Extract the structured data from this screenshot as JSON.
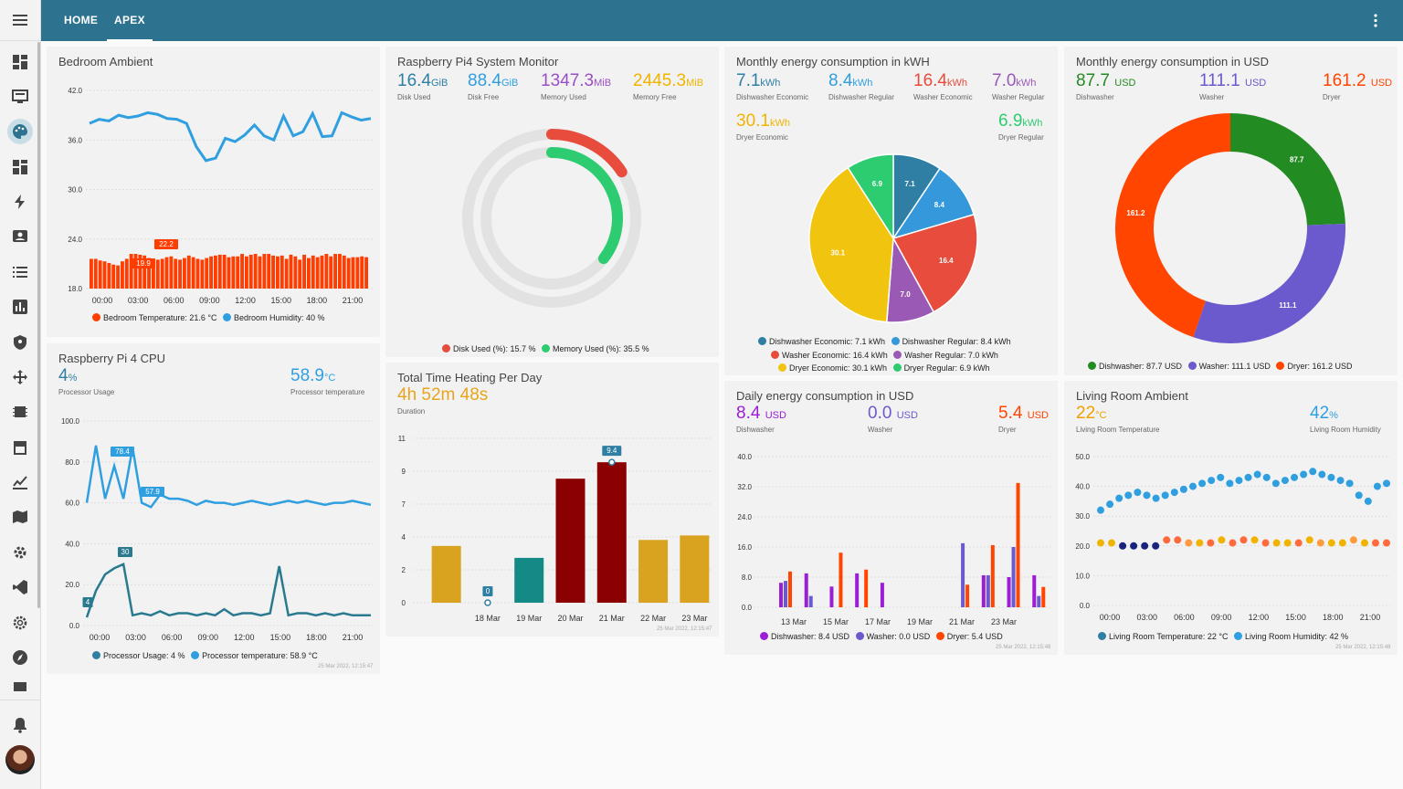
{
  "topbar": {
    "tabs": [
      {
        "label": "HOME"
      },
      {
        "label": "APEX"
      }
    ]
  },
  "sidebar": {
    "items": [
      "dashboard-icon",
      "monitor-icon",
      "palette-icon",
      "grid-icon",
      "bolt-icon",
      "user-card-icon",
      "list-icon",
      "chart-icon",
      "shield-icon",
      "move-icon",
      "memory-icon",
      "store-icon",
      "trend-icon",
      "map-icon",
      "cog-icon",
      "vscode-icon",
      "settings-icon",
      "compass-icon",
      "sensor-icon",
      "bell-icon"
    ]
  },
  "bedroom": {
    "title": "Bedroom Ambient",
    "legend": [
      "Bedroom Temperature: 21.6 °C",
      "Bedroom Humidity: 40 %"
    ],
    "colors": {
      "temp": "#ff3d00",
      "hum": "#2f9fe0"
    },
    "chart_data": {
      "type": "line",
      "ylim": [
        18,
        42
      ],
      "yticks": [
        "42.0",
        "36.0",
        "30.0",
        "24.0",
        "18.0"
      ],
      "xticks": [
        "00:00",
        "03:00",
        "06:00",
        "09:00",
        "12:00",
        "15:00",
        "18:00",
        "21:00"
      ],
      "series": [
        {
          "name": "Bedroom Humidity",
          "values": [
            38,
            38.5,
            38.3,
            39,
            38.7,
            38.9,
            39.3,
            39.1,
            38.6,
            38.5,
            38,
            35.2,
            33.5,
            33.8,
            36.2,
            35.8,
            36.6,
            37.8,
            36.5,
            36,
            38.9,
            36.5,
            37,
            39.2,
            36.4,
            36.5,
            39.3,
            38.8,
            38.4,
            38.6
          ]
        },
        {
          "name": "Bedroom Temperature",
          "values": [
            21.6,
            21.6,
            21.4,
            21.3,
            21.1,
            20.9,
            20.8,
            21.3,
            21.6,
            22.2,
            22.2,
            22.1,
            22,
            21.7,
            21.6,
            21.5,
            21.6,
            21.8,
            21.9,
            21.6,
            21.5,
            21.7,
            22,
            21.8,
            21.6,
            21.5,
            21.7,
            21.9,
            22,
            22.1,
            22.1,
            21.8,
            21.9,
            21.9,
            22.2,
            21.9,
            22.1,
            22.2,
            21.9,
            22.2,
            22.2,
            22,
            21.9,
            22,
            21.6,
            22.1,
            21.9,
            21.5,
            22.1,
            21.7,
            22,
            21.8,
            22,
            22.2,
            21.9,
            22.2,
            22.2,
            22,
            21.7,
            21.8,
            21.8,
            21.9,
            21.8
          ]
        }
      ],
      "annotations": [
        "22.2",
        "19.9"
      ]
    }
  },
  "system": {
    "title": "Raspberry Pi4 System Monitor",
    "stats": [
      {
        "value": "16.4",
        "unit": "GiB",
        "label": "Disk Used",
        "color": "#2f7fa4"
      },
      {
        "value": "88.4",
        "unit": "GiB",
        "label": "Disk Free",
        "color": "#2f9fe0"
      },
      {
        "value": "1347.3",
        "unit": "MiB",
        "label": "Memory Used",
        "color": "#9b4fc6"
      },
      {
        "value": "2445.3",
        "unit": "MiB",
        "label": "Memory Free",
        "color": "#f0b400"
      }
    ],
    "chart_data": {
      "type": "radialBar",
      "labels": [
        "Disk Used (%)",
        "Memory Used (%)"
      ],
      "values": [
        15.7,
        35.5
      ],
      "colors": [
        "#e74c3c",
        "#2ecc71"
      ]
    },
    "legend": [
      "Disk Used (%): 15.7 %",
      "Memory Used (%): 35.5 %"
    ]
  },
  "energy_kwh": {
    "title": "Monthly energy consumption in kWH",
    "stats": [
      {
        "value": "7.1",
        "unit": "kWh",
        "label": "Dishwasher Economic",
        "color": "#2f7fa4"
      },
      {
        "value": "8.4",
        "unit": "kWh",
        "label": "Dishwasher Regular",
        "color": "#2f9fe0"
      },
      {
        "value": "16.4",
        "unit": "kWh",
        "label": "Washer Economic",
        "color": "#e74c3c"
      },
      {
        "value": "7.0",
        "unit": "kWh",
        "label": "Washer Regular",
        "color": "#9b59b6"
      },
      {
        "value": "30.1",
        "unit": "kWh",
        "label": "Dryer Economic",
        "color": "#f0b400"
      },
      {
        "value": "6.9",
        "unit": "kWh",
        "label": "Dryer Regular",
        "color": "#2ecc71"
      }
    ],
    "chart_data": {
      "type": "pie",
      "labels": [
        "Dishwasher Economic",
        "Dishwasher Regular",
        "Washer Economic",
        "Washer Regular",
        "Dryer Economic",
        "Dryer Regular"
      ],
      "values": [
        7.1,
        8.4,
        16.4,
        7.0,
        30.1,
        6.9
      ],
      "colors": [
        "#2f7fa4",
        "#3498db",
        "#e74c3c",
        "#9b59b6",
        "#f1c40f",
        "#2ecc71"
      ]
    },
    "legend": [
      "Dishwasher Economic: 7.1 kWh",
      "Dishwasher Regular: 8.4 kWh",
      "Washer Economic: 16.4 kWh",
      "Washer Regular: 7.0 kWh",
      "Dryer Economic: 30.1 kWh",
      "Dryer Regular: 6.9 kWh"
    ]
  },
  "energy_usd": {
    "title": "Monthly energy consumption in USD",
    "stats": [
      {
        "value": "87.7",
        "unit": "USD",
        "label": "Dishwasher",
        "color": "#228b22"
      },
      {
        "value": "111.1",
        "unit": "USD",
        "label": "Washer",
        "color": "#6a5acd"
      },
      {
        "value": "161.2",
        "unit": "USD",
        "label": "Dryer",
        "color": "#ff4500"
      }
    ],
    "chart_data": {
      "type": "donut",
      "labels": [
        "Dishwasher",
        "Washer",
        "Dryer"
      ],
      "values": [
        87.7,
        111.1,
        161.2
      ],
      "colors": [
        "#228b22",
        "#6a5acd",
        "#ff4500"
      ]
    },
    "legend": [
      "Dishwasher: 87.7 USD",
      "Washer: 111.1 USD",
      "Dryer: 161.2 USD"
    ]
  },
  "cpu": {
    "title": "Raspberry Pi 4 CPU",
    "stats": [
      {
        "value": "4",
        "unit": "%",
        "label": "Processor Usage",
        "color": "#2f7fa4"
      },
      {
        "value": "58.9",
        "unit": "°C",
        "label": "Processor temperature",
        "color": "#2f9fe0"
      }
    ],
    "chart_data": {
      "type": "line",
      "ylim": [
        0,
        100
      ],
      "yticks": [
        "100.0",
        "80.0",
        "60.0",
        "40.0",
        "20.0",
        "0.0"
      ],
      "xticks": [
        "00:00",
        "03:00",
        "06:00",
        "09:00",
        "12:00",
        "15:00",
        "18:00",
        "21:00"
      ],
      "series": [
        {
          "name": "Processor temperature",
          "values": [
            60,
            88,
            62,
            78,
            62,
            87,
            60,
            57.9,
            64,
            62,
            62,
            61,
            59,
            61,
            60,
            60,
            59,
            60,
            61,
            60,
            59,
            60,
            61,
            60,
            61,
            60,
            59,
            60,
            60,
            61,
            60,
            59
          ]
        },
        {
          "name": "Processor Usage",
          "values": [
            4,
            17,
            25,
            28,
            30,
            5,
            6,
            5,
            7,
            5,
            6,
            6,
            5,
            6,
            5,
            8,
            5,
            6,
            6,
            5,
            6,
            29,
            5,
            6,
            6,
            5,
            6,
            5,
            6,
            5,
            5,
            5
          ]
        }
      ],
      "annotations": [
        "78.4",
        "57.9",
        "30",
        "4"
      ]
    },
    "legend": [
      "Processor Usage: 4 %",
      "Processor temperature: 58.9 °C"
    ],
    "stamp": "25 Mar 2022, 12:15:47"
  },
  "heating": {
    "title": "Total Time Heating Per Day",
    "stat": {
      "value": "4h 52m 48s",
      "label": "Duration",
      "color": "#e8a51c"
    },
    "chart_data": {
      "type": "bar",
      "categories": [
        "",
        "18 Mar",
        "19 Mar",
        "20 Mar",
        "21 Mar",
        "22 Mar",
        "23 Mar"
      ],
      "values": [
        3.8,
        0,
        3,
        8.3,
        9.4,
        4.2,
        4.5
      ],
      "colors": [
        "#d9a21f",
        "#d9a21f",
        "#138a86",
        "#8b0000",
        "#8b0000",
        "#d9a21f",
        "#d9a21f"
      ],
      "ylim": [
        0,
        11
      ],
      "yticks": [
        "11",
        "9",
        "7",
        "4",
        "2",
        "0"
      ],
      "annotations": [
        "9.4",
        "0"
      ]
    },
    "stamp": "25 Mar 2022, 12:15:47"
  },
  "daily_usd": {
    "title": "Daily energy consumption in USD",
    "stats": [
      {
        "value": "8.4",
        "unit": "USD",
        "label": "Dishwasher",
        "color": "#9b1ed6"
      },
      {
        "value": "0.0",
        "unit": "USD",
        "label": "Washer",
        "color": "#6a5acd"
      },
      {
        "value": "5.4",
        "unit": "USD",
        "label": "Dryer",
        "color": "#ff4500"
      }
    ],
    "chart_data": {
      "type": "bar",
      "yticks": [
        "40.0",
        "32.0",
        "24.0",
        "16.0",
        "8.0",
        "0.0"
      ],
      "ylim": [
        0,
        40
      ],
      "xticks": [
        "13 Mar",
        "15 Mar",
        "17 Mar",
        "19 Mar",
        "21 Mar",
        "23 Mar"
      ],
      "series": [
        {
          "name": "Dishwasher",
          "values": [
            6.5,
            9,
            5.5,
            9,
            6.5,
            0,
            0,
            0,
            8.5,
            8,
            8.5
          ],
          "color": "#9b1ed6"
        },
        {
          "name": "Washer",
          "values": [
            7,
            3,
            0,
            0,
            0,
            0,
            0,
            17,
            8.5,
            16,
            3
          ],
          "color": "#6a5acd"
        },
        {
          "name": "Dryer",
          "values": [
            9.5,
            0,
            14.5,
            10,
            0,
            0,
            0,
            6,
            16.5,
            33,
            5.4
          ],
          "color": "#ff4500"
        }
      ]
    },
    "legend": [
      "Dishwasher: 8.4 USD",
      "Washer: 0.0 USD",
      "Dryer: 5.4 USD"
    ],
    "stamp": "25 Mar 2022, 12:15:48"
  },
  "living": {
    "title": "Living Room Ambient",
    "stats": [
      {
        "value": "22",
        "unit": "°C",
        "label": "Living Room Temperature",
        "color": "#f0a000"
      },
      {
        "value": "42",
        "unit": "%",
        "label": "Living Room Humidity",
        "color": "#2f9fe0"
      }
    ],
    "chart_data": {
      "type": "scatter",
      "ylim": [
        0,
        50
      ],
      "yticks": [
        "50.0",
        "40.0",
        "30.0",
        "20.0",
        "10.0",
        "0.0"
      ],
      "xticks": [
        "00:00",
        "03:00",
        "06:00",
        "09:00",
        "12:00",
        "15:00",
        "18:00",
        "21:00"
      ],
      "series": [
        {
          "name": "Living Room Humidity",
          "values": [
            32,
            34,
            36,
            37,
            38,
            37,
            36,
            37,
            38,
            39,
            40,
            41,
            42,
            43,
            41,
            42,
            43,
            44,
            43,
            41,
            42,
            43,
            44,
            45,
            44,
            43,
            42,
            41,
            37,
            35,
            40,
            41
          ]
        },
        {
          "name": "Living Room Temperature",
          "values": [
            21,
            21,
            20,
            20,
            20,
            20,
            22,
            22,
            21,
            21,
            21,
            22,
            21,
            22,
            22,
            21,
            21,
            21,
            21,
            22,
            21,
            21,
            21,
            22,
            21,
            21,
            21
          ]
        }
      ]
    },
    "legend": [
      "Living Room Temperature: 22 °C",
      "Living Room Humidity: 42 %"
    ],
    "stamp": "25 Mar 2022, 12:15:48"
  }
}
